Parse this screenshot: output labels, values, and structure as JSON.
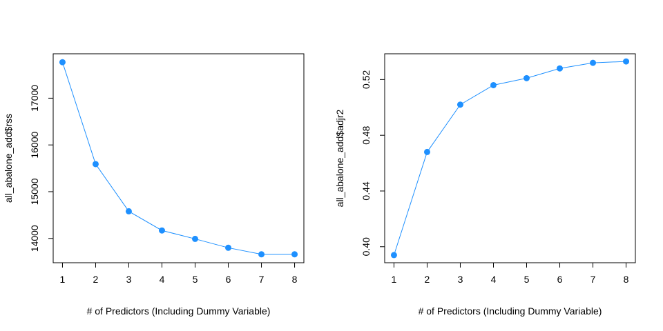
{
  "chart_data": [
    {
      "type": "line",
      "xlabel": "# of Predictors (Including Dummy Variable)",
      "ylabel": "all_abalone_add$rss",
      "x": [
        1,
        2,
        3,
        4,
        5,
        6,
        7,
        8
      ],
      "values": [
        17770,
        15590,
        14580,
        14170,
        13990,
        13800,
        13660,
        13660
      ],
      "xlim": [
        0.72,
        8.28
      ],
      "ylim": [
        13480,
        17950
      ],
      "xticks": [
        1,
        2,
        3,
        4,
        5,
        6,
        7,
        8
      ],
      "xtick_labels": [
        "1",
        "2",
        "3",
        "4",
        "5",
        "6",
        "7",
        "8"
      ],
      "yticks": [
        14000,
        15000,
        16000,
        17000
      ],
      "ytick_labels": [
        "14000",
        "15000",
        "16000",
        "17000"
      ],
      "marker": "filled-circle",
      "color": "#1e90ff",
      "grid": false,
      "legend": "none"
    },
    {
      "type": "line",
      "xlabel": "# of Predictors (Including Dummy Variable)",
      "ylabel": "all_abalone_add$adjr2",
      "x": [
        1,
        2,
        3,
        4,
        5,
        6,
        7,
        8
      ],
      "values": [
        0.394,
        0.468,
        0.502,
        0.516,
        0.521,
        0.528,
        0.532,
        0.533
      ],
      "xlim": [
        0.72,
        8.28
      ],
      "ylim": [
        0.3885,
        0.5385
      ],
      "xticks": [
        1,
        2,
        3,
        4,
        5,
        6,
        7,
        8
      ],
      "xtick_labels": [
        "1",
        "2",
        "3",
        "4",
        "5",
        "6",
        "7",
        "8"
      ],
      "yticks": [
        0.4,
        0.44,
        0.48,
        0.52
      ],
      "ytick_labels": [
        "0.40",
        "0.44",
        "0.48",
        "0.52"
      ],
      "marker": "filled-circle",
      "color": "#1e90ff",
      "grid": false,
      "legend": "none"
    }
  ]
}
